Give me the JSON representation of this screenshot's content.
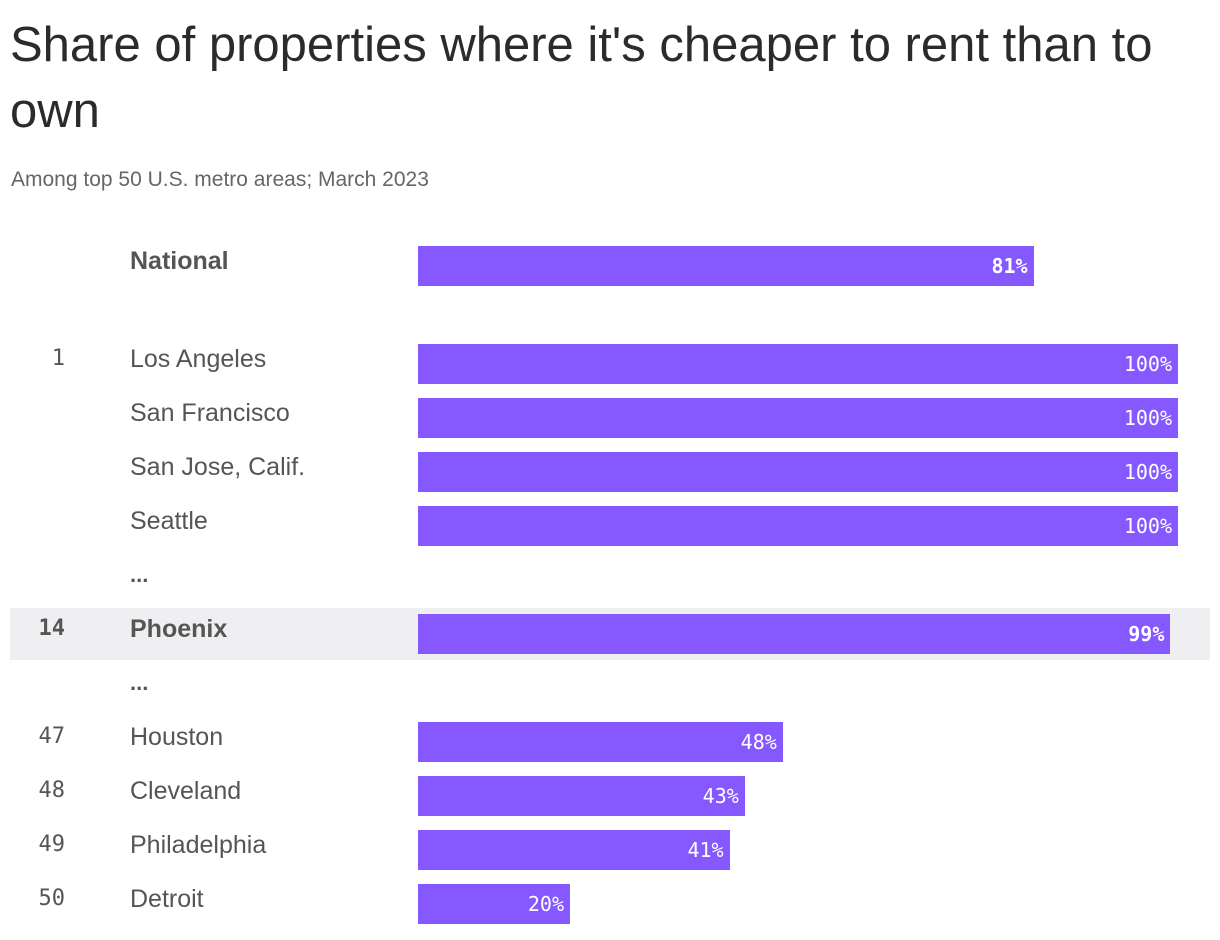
{
  "header": {
    "title": "Share of properties where it's cheaper to rent than to own",
    "subtitle": "Among top 50 U.S. metro areas; March 2023"
  },
  "colors": {
    "bar": "#8559ff",
    "highlight_row": "#efeff1"
  },
  "chart_data": {
    "type": "bar",
    "orientation": "horizontal",
    "title": "Share of properties where it's cheaper to rent than to own",
    "subtitle": "Among top 50 U.S. metro areas; March 2023",
    "unit": "%",
    "xlim": [
      0,
      100
    ],
    "ellipsis_text": "...",
    "rows": [
      {
        "kind": "bar",
        "rank": "",
        "name": "National",
        "value": 81,
        "label": "81%",
        "bold": true,
        "highlight": false
      },
      {
        "kind": "bar",
        "rank": "1",
        "name": "Los Angeles",
        "value": 100,
        "label": "100%",
        "bold": false,
        "highlight": false
      },
      {
        "kind": "bar",
        "rank": "",
        "name": "San Francisco",
        "value": 100,
        "label": "100%",
        "bold": false,
        "highlight": false
      },
      {
        "kind": "bar",
        "rank": "",
        "name": "San Jose, Calif.",
        "value": 100,
        "label": "100%",
        "bold": false,
        "highlight": false
      },
      {
        "kind": "bar",
        "rank": "",
        "name": "Seattle",
        "value": 100,
        "label": "100%",
        "bold": false,
        "highlight": false
      },
      {
        "kind": "ellipsis"
      },
      {
        "kind": "bar",
        "rank": "14",
        "name": "Phoenix",
        "value": 99,
        "label": "99%",
        "bold": true,
        "highlight": true
      },
      {
        "kind": "ellipsis"
      },
      {
        "kind": "bar",
        "rank": "47",
        "name": "Houston",
        "value": 48,
        "label": "48%",
        "bold": false,
        "highlight": false
      },
      {
        "kind": "bar",
        "rank": "48",
        "name": "Cleveland",
        "value": 43,
        "label": "43%",
        "bold": false,
        "highlight": false
      },
      {
        "kind": "bar",
        "rank": "49",
        "name": "Philadelphia",
        "value": 41,
        "label": "41%",
        "bold": false,
        "highlight": false
      },
      {
        "kind": "bar",
        "rank": "50",
        "name": "Detroit",
        "value": 20,
        "label": "20%",
        "bold": false,
        "highlight": false
      }
    ]
  }
}
